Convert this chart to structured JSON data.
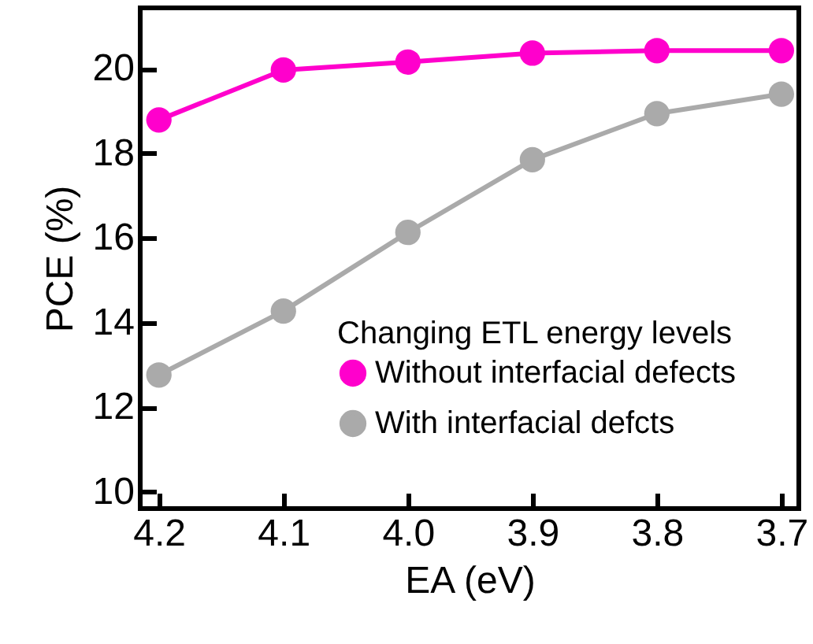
{
  "chart_data": {
    "type": "line",
    "xlabel": "EA (eV)",
    "ylabel": "PCE (%)",
    "legend_title": "Changing ETL energy levels",
    "x": [
      4.2,
      4.1,
      4.0,
      3.9,
      3.8,
      3.7
    ],
    "xlim": [
      4.215,
      3.686
    ],
    "xticks": [
      4.2,
      4.1,
      {
        "value": 4.0,
        "label": "4.0"
      },
      3.9,
      3.8,
      3.7
    ],
    "ylim": [
      9.6,
      21.44
    ],
    "yticks": [
      10,
      12,
      14,
      16,
      18,
      20
    ],
    "series": [
      {
        "name": "Without interfacial defects",
        "color": "#ff00cc",
        "values": [
          18.79,
          19.97,
          20.16,
          20.37,
          20.43,
          20.43
        ]
      },
      {
        "name": "With interfacial defcts",
        "color": "#aaaaaa",
        "values": [
          12.76,
          14.27,
          16.13,
          17.85,
          18.94,
          19.4
        ]
      }
    ],
    "legend": "bottom right",
    "marker": "circle",
    "line_style": "solid",
    "grid": false
  }
}
